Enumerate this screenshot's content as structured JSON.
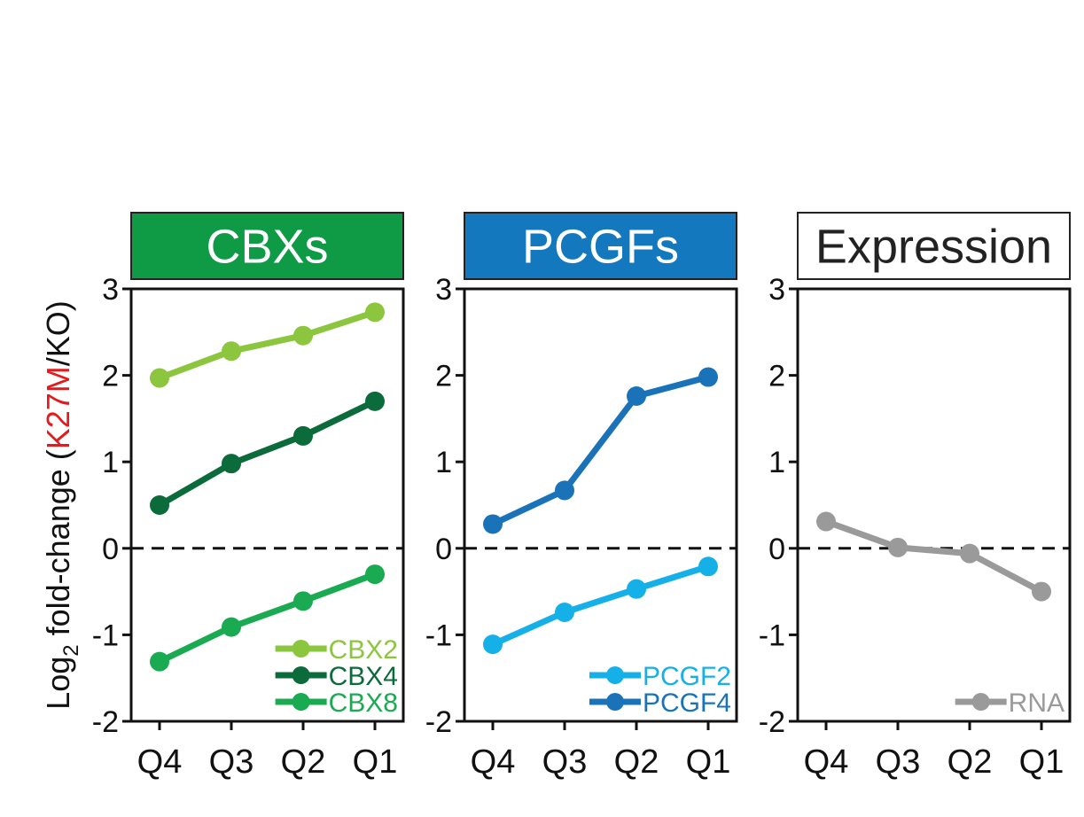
{
  "chart_data": {
    "type": "line",
    "ylabel": {
      "prefix": "Log",
      "subscript": "2",
      "middle": " fold-change (",
      "highlight": "K27M",
      "suffix": "/KO)",
      "highlight_color": "#e41a1c"
    },
    "categories": [
      "Q4",
      "Q3",
      "Q2",
      "Q1"
    ],
    "ylim": [
      -2,
      3
    ],
    "yticks": [
      "3",
      "2",
      "1",
      "0",
      "-1",
      "-2"
    ],
    "reference_line": 0,
    "panels": [
      {
        "header": "CBXs",
        "header_bg": "#0f9a45",
        "header_text_color": "#ffffff",
        "series": [
          {
            "name": "CBX2",
            "color": "#8cc63f",
            "values": [
              1.97,
              2.28,
              2.46,
              2.73
            ]
          },
          {
            "name": "CBX4",
            "color": "#0b6b3a",
            "values": [
              0.5,
              0.98,
              1.3,
              1.7
            ]
          },
          {
            "name": "CBX8",
            "color": "#1aab52",
            "values": [
              -1.31,
              -0.91,
              -0.61,
              -0.3
            ]
          }
        ]
      },
      {
        "header": "PCGFs",
        "header_bg": "#1478be",
        "header_text_color": "#ffffff",
        "series": [
          {
            "name": "PCGF2",
            "color": "#15b0e8",
            "values": [
              -1.11,
              -0.74,
              -0.47,
              -0.21
            ]
          },
          {
            "name": "PCGF4",
            "color": "#1a73b9",
            "values": [
              0.28,
              0.67,
              1.76,
              1.98
            ]
          }
        ]
      },
      {
        "header": "Expression",
        "header_bg": "#ffffff",
        "header_text_color": "#222222",
        "series": [
          {
            "name": "RNA",
            "color": "#9a9a9a",
            "values": [
              0.31,
              0.01,
              -0.06,
              -0.5
            ]
          }
        ]
      }
    ]
  }
}
